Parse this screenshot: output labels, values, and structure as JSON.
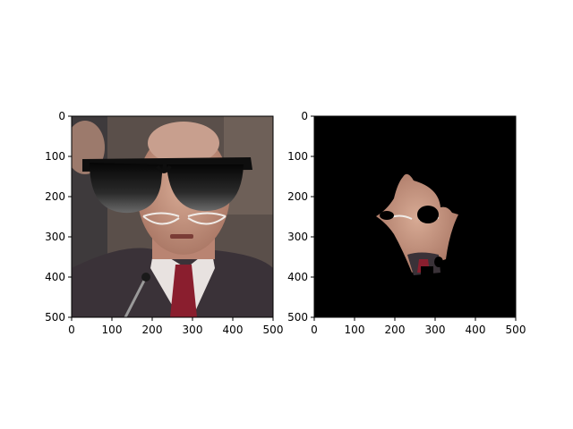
{
  "chart_data": [
    {
      "type": "image",
      "content": "photograph of man with cartoon sunglasses overlay",
      "xlim": [
        0,
        500
      ],
      "ylim": [
        500,
        0
      ],
      "xticks": [
        0,
        100,
        200,
        300,
        400,
        500
      ],
      "yticks": [
        0,
        100,
        200,
        300,
        400,
        500
      ],
      "xtick_labels": [
        "0",
        "100",
        "200",
        "300",
        "400",
        "500"
      ],
      "ytick_labels": [
        "0",
        "100",
        "200",
        "300",
        "400",
        "500"
      ],
      "title": "",
      "xlabel": "",
      "ylabel": ""
    },
    {
      "type": "image",
      "content": "segmented face region on black background",
      "xlim": [
        0,
        500
      ],
      "ylim": [
        500,
        0
      ],
      "xticks": [
        0,
        100,
        200,
        300,
        400,
        500
      ],
      "yticks": [
        0,
        100,
        200,
        300,
        400,
        500
      ],
      "xtick_labels": [
        "0",
        "100",
        "200",
        "300",
        "400",
        "500"
      ],
      "ytick_labels": [
        "0",
        "100",
        "200",
        "300",
        "400",
        "500"
      ],
      "title": "",
      "xlabel": "",
      "ylabel": ""
    }
  ],
  "colors": {
    "suit": "#3a3238",
    "skin": "#c89a86",
    "background_photo": "#5a4f4a",
    "tie": "#8a1e2e",
    "lens": "#1a1a1a",
    "mask_background": "#000000"
  }
}
